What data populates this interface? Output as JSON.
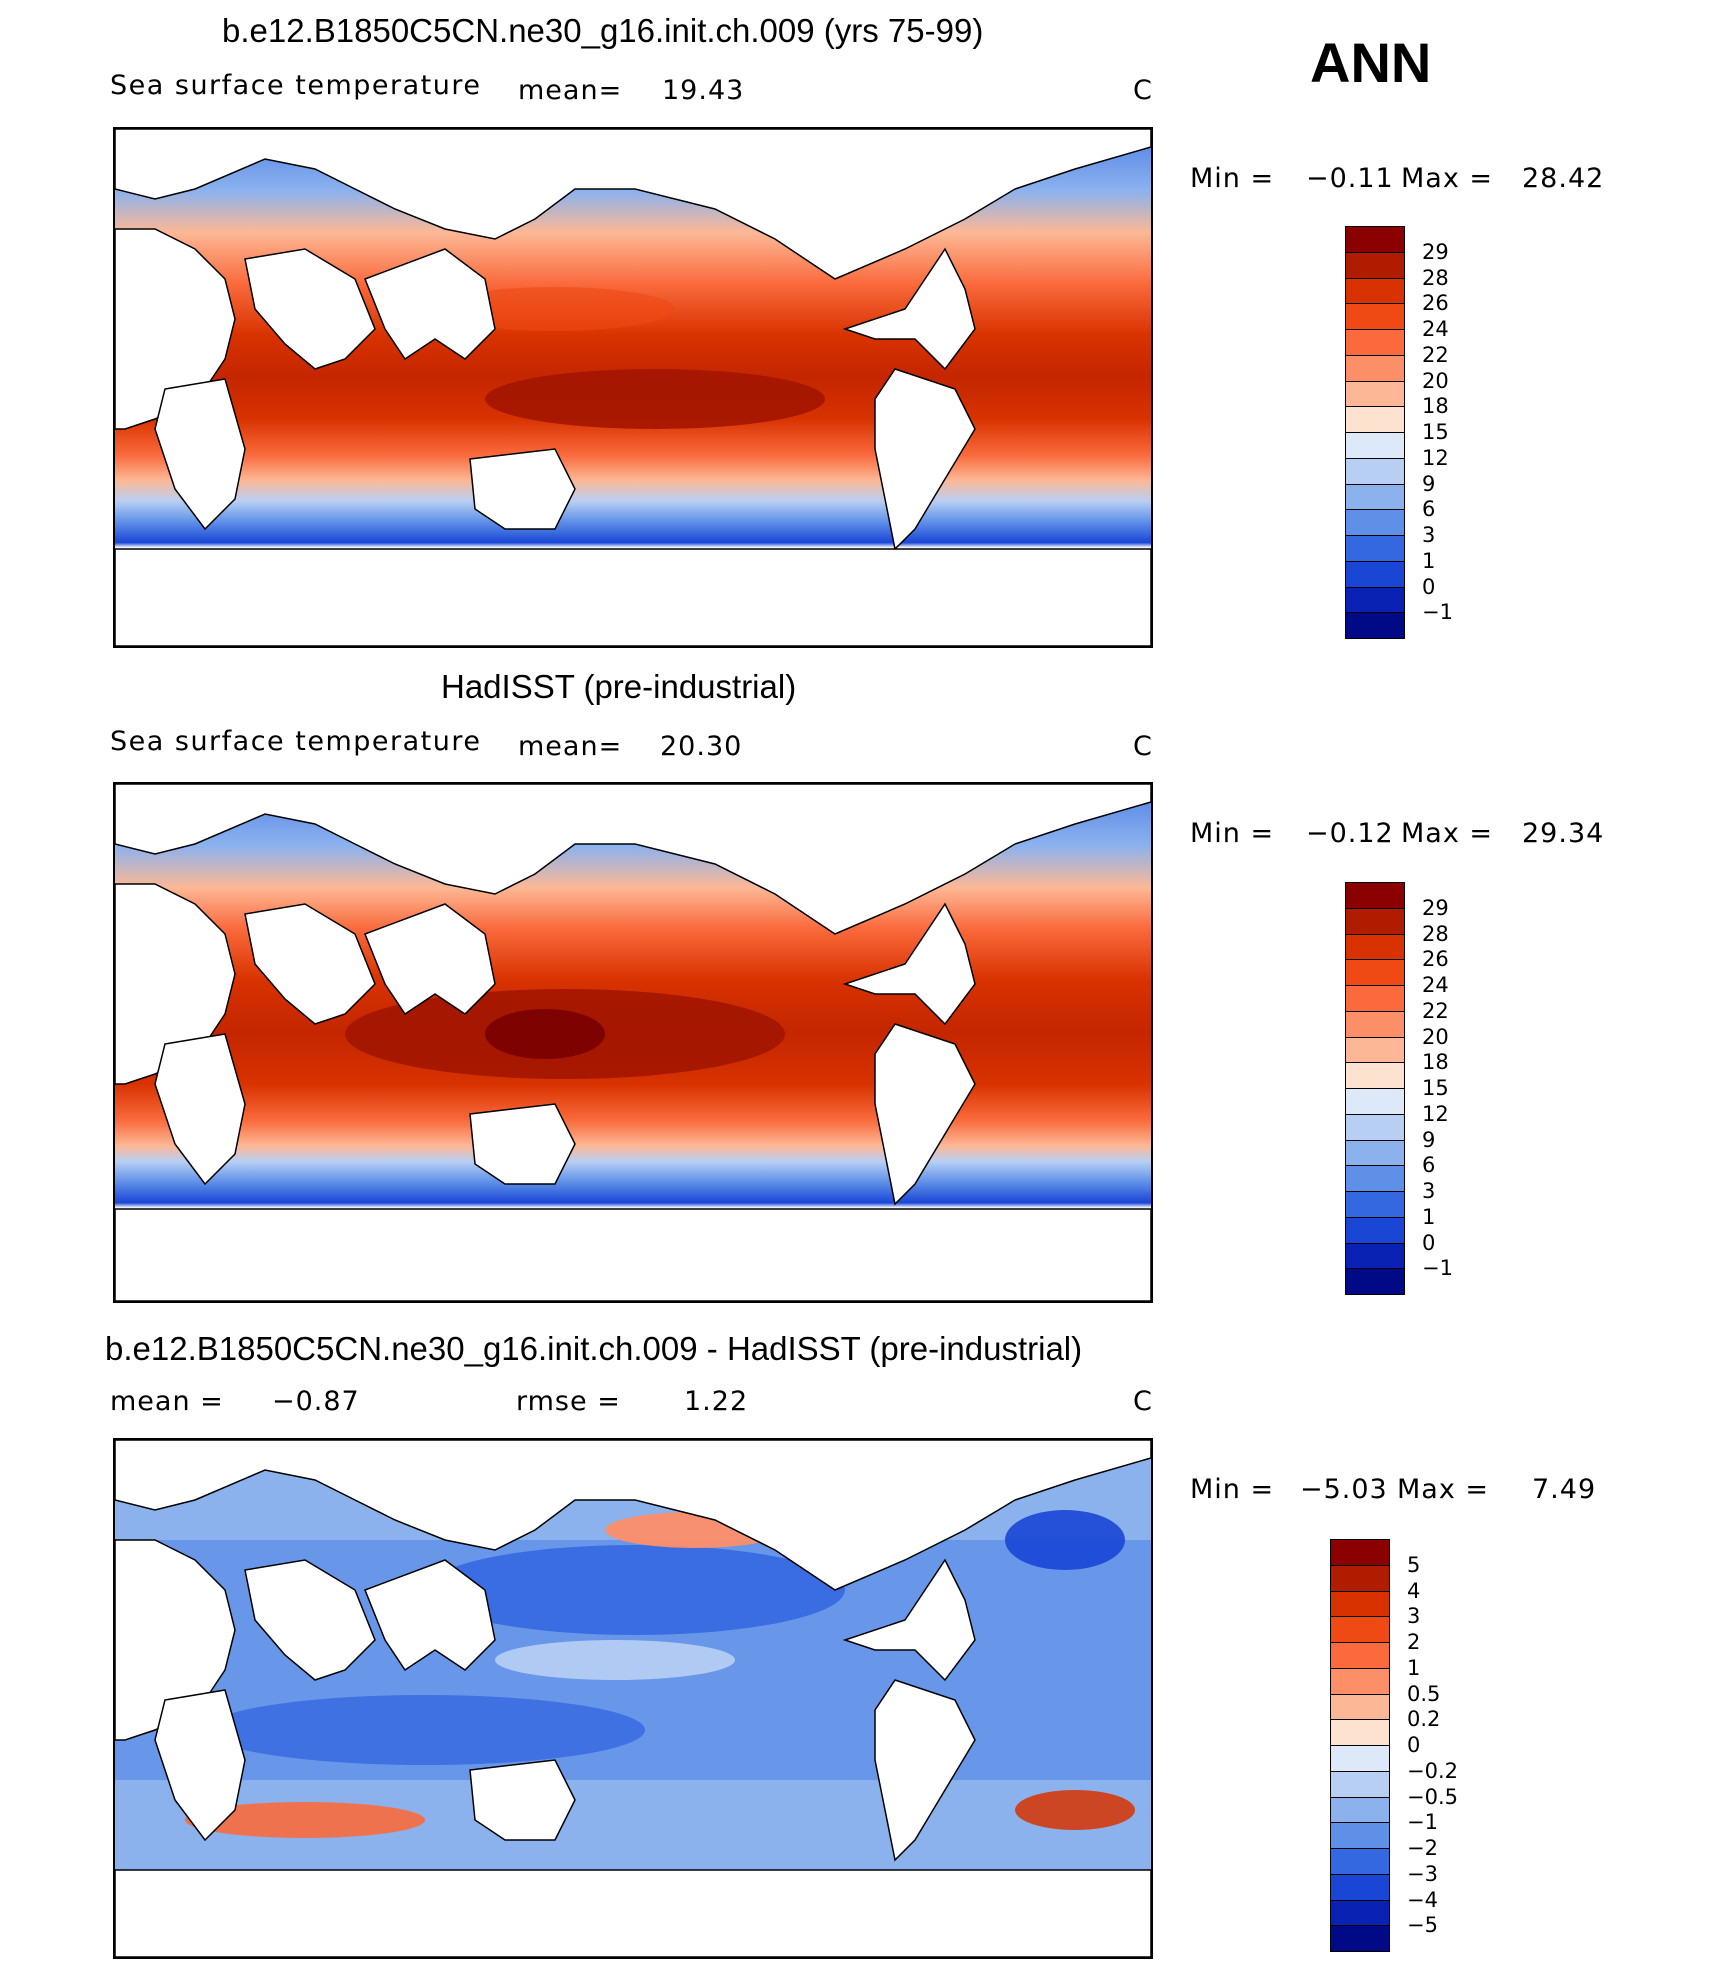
{
  "season": "ANN",
  "panels": [
    {
      "title": "b.e12.B1850C5CN.ne30_g16.init.ch.009 (yrs 75-99)",
      "variable": "Sea surface temperature",
      "stat_label": "mean=",
      "stat_value": "19.43",
      "units": "C",
      "min_label": "Min =",
      "min_value": "−0.11",
      "max_label": "Max =",
      "max_value": "28.42",
      "colorbar_labels": [
        "29",
        "28",
        "26",
        "24",
        "22",
        "20",
        "18",
        "15",
        "12",
        "9",
        "6",
        "3",
        "1",
        "0",
        "−1"
      ],
      "colorbar_colors": [
        "#8b0000",
        "#b01c00",
        "#d83200",
        "#ef4a14",
        "#fa6a3c",
        "#fc8e68",
        "#fcb896",
        "#fde3cf",
        "#dde8f8",
        "#b8cff4",
        "#8cb2ee",
        "#5f90e8",
        "#3468e0",
        "#1a46d6",
        "#0a22b4",
        "#000a86"
      ]
    },
    {
      "title": "HadISST (pre-industrial)",
      "variable": "Sea surface temperature",
      "stat_label": "mean=",
      "stat_value": "20.30",
      "units": "C",
      "min_label": "Min =",
      "min_value": "−0.12",
      "max_label": "Max =",
      "max_value": "29.34",
      "colorbar_labels": [
        "29",
        "28",
        "26",
        "24",
        "22",
        "20",
        "18",
        "15",
        "12",
        "9",
        "6",
        "3",
        "1",
        "0",
        "−1"
      ],
      "colorbar_colors": [
        "#8b0000",
        "#b01c00",
        "#d83200",
        "#ef4a14",
        "#fa6a3c",
        "#fc8e68",
        "#fcb896",
        "#fde3cf",
        "#dde8f8",
        "#b8cff4",
        "#8cb2ee",
        "#5f90e8",
        "#3468e0",
        "#1a46d6",
        "#0a22b4",
        "#000a86"
      ]
    },
    {
      "title": "b.e12.B1850C5CN.ne30_g16.init.ch.009 - HadISST (pre-industrial)",
      "stat_label": "mean =",
      "stat_value": "−0.87",
      "stat2_label": "rmse =",
      "stat2_value": "1.22",
      "units": "C",
      "min_label": "Min =",
      "min_value": "−5.03",
      "max_label": "Max =",
      "max_value": "7.49",
      "colorbar_labels": [
        "5",
        "4",
        "3",
        "2",
        "1",
        "0.5",
        "0.2",
        "0",
        "−0.2",
        "−0.5",
        "−1",
        "−2",
        "−3",
        "−4",
        "−5"
      ],
      "colorbar_colors": [
        "#8b0000",
        "#b01c00",
        "#d83200",
        "#ef4a14",
        "#fa6a3c",
        "#fc8e68",
        "#fcb896",
        "#fde3cf",
        "#dde8f8",
        "#b8cff4",
        "#8cb2ee",
        "#5f90e8",
        "#3468e0",
        "#1a46d6",
        "#0a22b4",
        "#000a86"
      ]
    }
  ]
}
